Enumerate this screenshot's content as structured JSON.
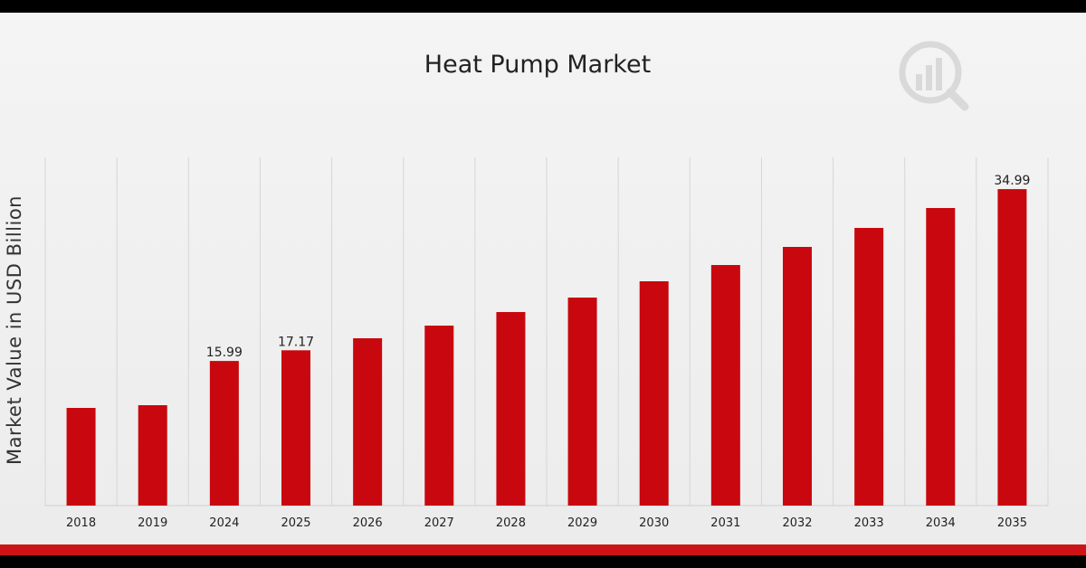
{
  "chart_data": {
    "type": "bar",
    "title": "Heat Pump Market",
    "xlabel": "",
    "ylabel": "Market Value in USD Billion",
    "categories": [
      "2018",
      "2019",
      "2024",
      "2025",
      "2026",
      "2027",
      "2028",
      "2029",
      "2030",
      "2031",
      "2032",
      "2033",
      "2034",
      "2035"
    ],
    "values": [
      10.8,
      11.1,
      15.99,
      17.17,
      18.5,
      19.9,
      21.4,
      23.0,
      24.8,
      26.6,
      28.6,
      30.7,
      32.9,
      34.99
    ],
    "data_labels": [
      {
        "index": 2,
        "text": "15.99"
      },
      {
        "index": 3,
        "text": "17.17"
      },
      {
        "index": 13,
        "text": "34.99"
      }
    ],
    "ylim": [
      0,
      38.5
    ],
    "grid": "vertical",
    "bar_color": "#c8080e"
  }
}
